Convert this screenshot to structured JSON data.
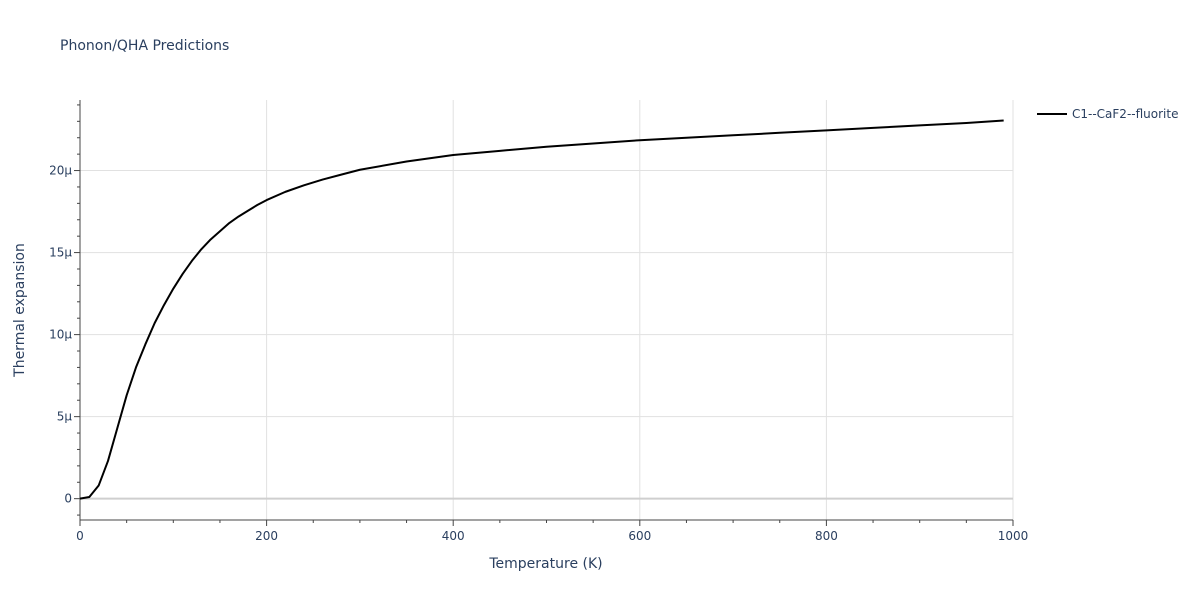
{
  "chart_data": {
    "type": "line",
    "title": "Phonon/QHA Predictions",
    "xlabel": "Temperature (K)",
    "ylabel": "Thermal expansion",
    "xlim": [
      0,
      1000
    ],
    "ylim": [
      -1.3,
      24.3
    ],
    "x_ticks": [
      0,
      200,
      400,
      600,
      800,
      1000
    ],
    "x_tick_labels": [
      "0",
      "200",
      "400",
      "600",
      "800",
      "1000"
    ],
    "y_ticks": [
      0,
      5,
      10,
      15,
      20
    ],
    "y_tick_labels": [
      "0",
      "5μ",
      "10μ",
      "15μ",
      "20μ"
    ],
    "y_unit": "μ (×1e-6)",
    "grid": true,
    "legend_position": "top-right",
    "series": [
      {
        "name": "C1--CaF2--fluorite",
        "color": "#000000",
        "x": [
          0,
          10,
          20,
          30,
          40,
          50,
          60,
          70,
          80,
          90,
          100,
          110,
          120,
          130,
          140,
          150,
          160,
          170,
          180,
          190,
          200,
          220,
          240,
          260,
          280,
          300,
          350,
          400,
          450,
          500,
          550,
          600,
          650,
          700,
          750,
          800,
          850,
          900,
          950,
          990
        ],
        "values": [
          0,
          0.1,
          0.8,
          2.3,
          4.3,
          6.3,
          8.0,
          9.4,
          10.7,
          11.8,
          12.8,
          13.7,
          14.5,
          15.2,
          15.8,
          16.3,
          16.8,
          17.2,
          17.55,
          17.9,
          18.2,
          18.7,
          19.1,
          19.45,
          19.75,
          20.05,
          20.55,
          20.95,
          21.2,
          21.45,
          21.65,
          21.85,
          22.0,
          22.15,
          22.3,
          22.45,
          22.6,
          22.75,
          22.9,
          23.05
        ]
      }
    ]
  }
}
